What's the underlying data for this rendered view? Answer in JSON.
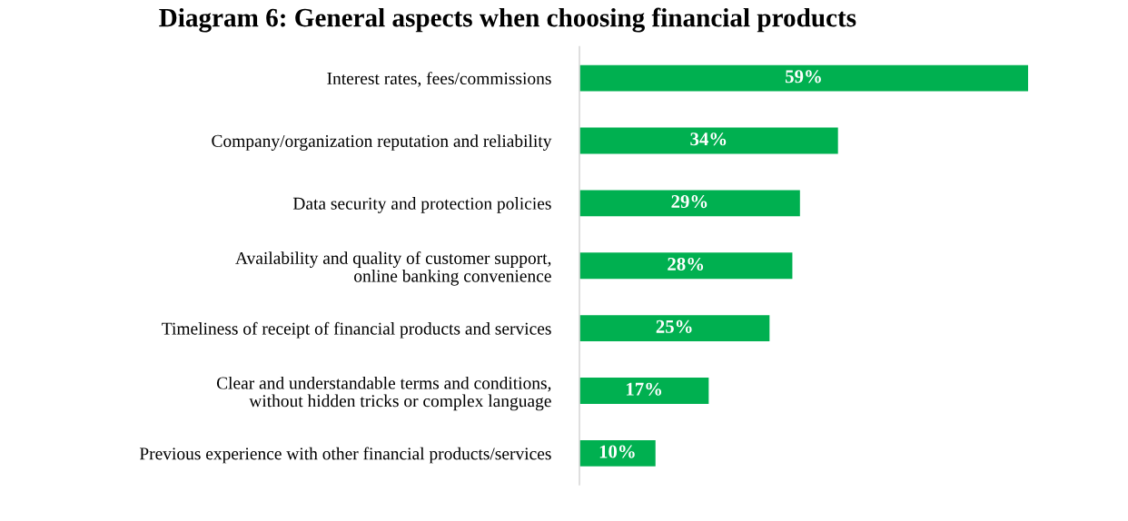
{
  "chart_data": {
    "type": "bar",
    "orientation": "horizontal",
    "title": "Diagram 6: General aspects when choosing financial products",
    "categories": [
      "Interest rates, fees/commissions",
      "Company/organization reputation and reliability",
      "Data security and protection policies",
      "Availability and quality of customer support,\nonline banking convenience",
      "Timeliness of receipt of financial products and services",
      "Clear and understandable terms and conditions,\nwithout hidden tricks or complex language",
      "Previous experience with other financial products/services"
    ],
    "values": [
      59,
      34,
      29,
      28,
      25,
      17,
      10
    ],
    "value_labels": [
      "59%",
      "34%",
      "29%",
      "28%",
      "25%",
      "17%",
      "10%"
    ],
    "color": "#00b050",
    "grid": false,
    "legend": false
  }
}
